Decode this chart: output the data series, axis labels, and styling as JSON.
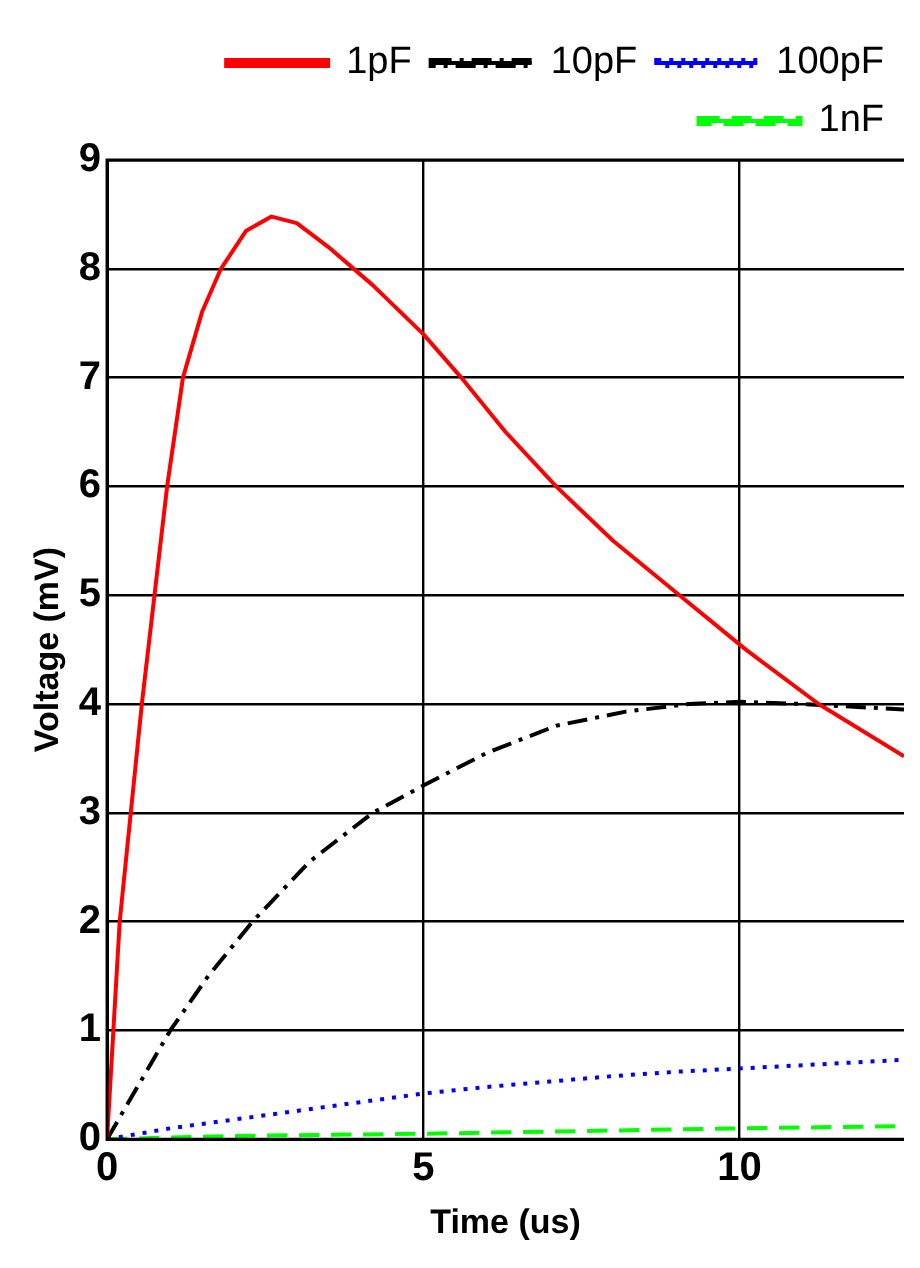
{
  "chart_data": {
    "type": "line",
    "xlabel": "Time (us)",
    "ylabel": "Voltage (mV)",
    "xlim": [
      0,
      12.6
    ],
    "ylim": [
      0,
      9
    ],
    "xticks": [
      0,
      5,
      10
    ],
    "yticks": [
      0,
      1,
      2,
      3,
      4,
      5,
      6,
      7,
      8,
      9
    ],
    "grid": true,
    "legend": "top right",
    "marker": "none",
    "series": [
      {
        "name": "1pF",
        "color": "#ff0000",
        "line_style": "solid",
        "x": [
          0,
          0.2,
          0.55,
          0.95,
          1.2,
          1.5,
          1.8,
          2.2,
          2.6,
          3.0,
          3.5,
          4.2,
          5.0,
          5.6,
          6.3,
          7.1,
          8.0,
          9.05,
          10.1,
          11.25,
          12.6
        ],
        "values": [
          0,
          2,
          4,
          6,
          7,
          7.6,
          8,
          8.35,
          8.48,
          8.42,
          8.2,
          7.85,
          7.4,
          7,
          6.5,
          6,
          5.5,
          5,
          4.5,
          4,
          3.52
        ]
      },
      {
        "name": "10pF",
        "color": "#000000",
        "line_style": "dashdot",
        "x": [
          0,
          0.5,
          1.0,
          1.6,
          2.3,
          3.2,
          4.2,
          5,
          6,
          7.1,
          8.2,
          9.2,
          10,
          11,
          12.6
        ],
        "values": [
          0,
          0.5,
          1,
          1.5,
          2,
          2.55,
          3,
          3.25,
          3.55,
          3.8,
          3.93,
          4.0,
          4.02,
          4.0,
          3.95
        ]
      },
      {
        "name": "100pF",
        "color": "#0000ff",
        "line_style": "dotted",
        "x": [
          0,
          1,
          2,
          3,
          4,
          5,
          6,
          7,
          8,
          9,
          10,
          11,
          12.6
        ],
        "values": [
          0,
          0.1,
          0.18,
          0.26,
          0.34,
          0.42,
          0.48,
          0.53,
          0.58,
          0.62,
          0.65,
          0.68,
          0.73
        ]
      },
      {
        "name": "1nF",
        "color": "#00ff00",
        "line_style": "dashed",
        "x": [
          0,
          2,
          5,
          8,
          10,
          12.6
        ],
        "values": [
          0,
          0.03,
          0.05,
          0.08,
          0.1,
          0.12
        ]
      }
    ]
  }
}
